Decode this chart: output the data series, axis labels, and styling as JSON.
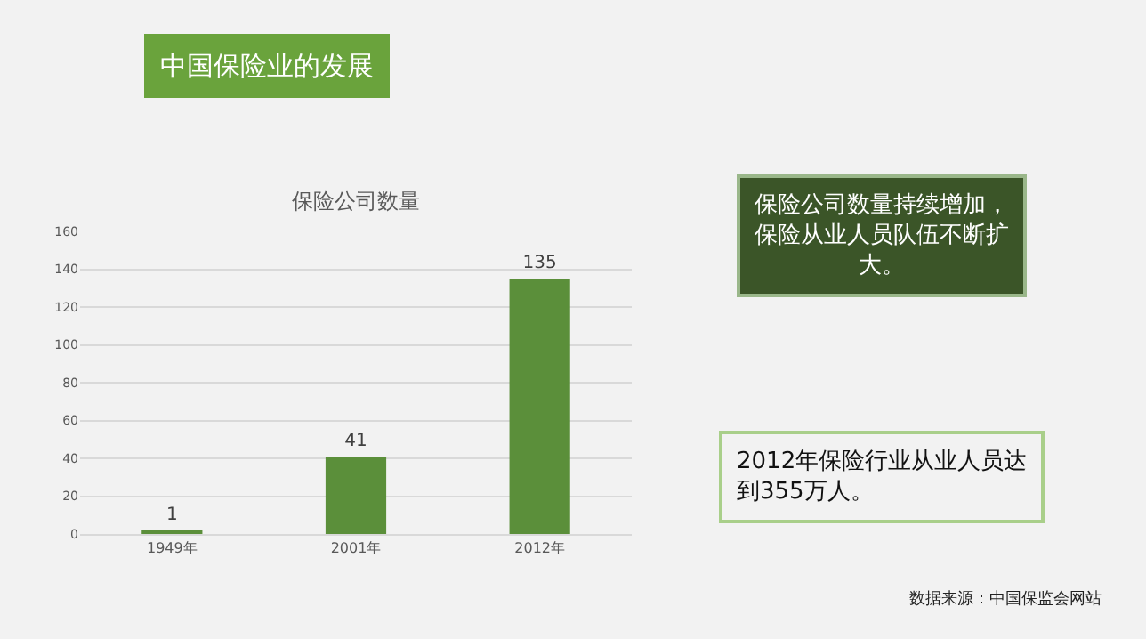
{
  "chart_data": {
    "type": "bar",
    "title": "保险公司数量",
    "categories": [
      "1949年",
      "2001年",
      "2012年"
    ],
    "values": [
      1,
      41,
      135
    ],
    "color": "#5b8f3a",
    "ylim": [
      0,
      160
    ],
    "yticks": [
      0,
      20,
      40,
      60,
      80,
      100,
      120,
      140,
      160
    ],
    "grid": "y",
    "data_labels": true,
    "annotations": [
      "中国保险业的发展",
      "保险公司数量持续增加，保险从业人员队伍不断扩大。",
      "2012年保险行业从业人员达到355万人。",
      "数据来源：中国保监会网站"
    ]
  }
}
